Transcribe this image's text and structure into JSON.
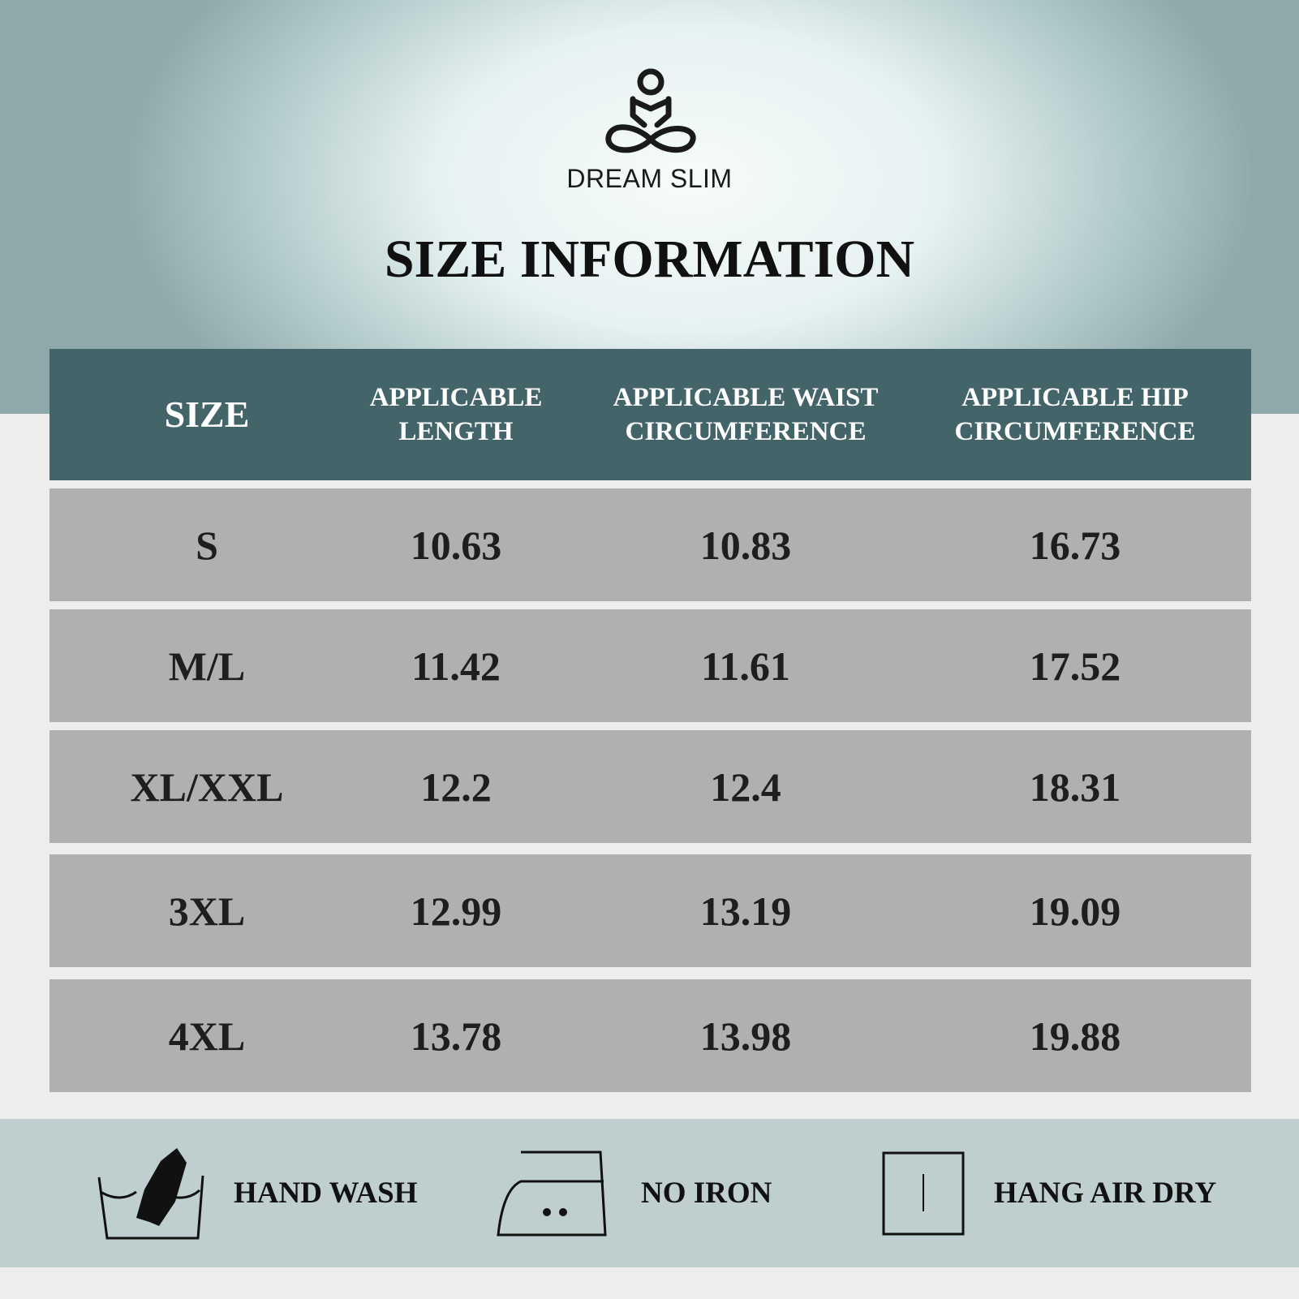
{
  "brand": {
    "name": "DREAM SLIM",
    "logo_icon": "meditation-figure-logo"
  },
  "title": "SIZE INFORMATION",
  "colors": {
    "header": "#436469",
    "row": "#b0b0b0",
    "care_band": "#bfcfcf"
  },
  "table": {
    "headers": [
      "SIZE",
      "APPLICABLE\nLENGTH",
      "APPLICABLE WAIST\nCIRCUMFERENCE",
      "APPLICABLE HIP\nCIRCUMFERENCE"
    ],
    "rows": [
      [
        "S",
        "10.63",
        "10.83",
        "16.73"
      ],
      [
        "M/L",
        "11.42",
        "11.61",
        "17.52"
      ],
      [
        "XL/XXL",
        "12.2",
        "12.4",
        "18.31"
      ],
      [
        "3XL",
        "12.99",
        "13.19",
        "19.09"
      ],
      [
        "4XL",
        "13.78",
        "13.98",
        "19.88"
      ]
    ]
  },
  "care": [
    {
      "icon": "hand-wash-icon",
      "label": "HAND WASH"
    },
    {
      "icon": "no-iron-icon",
      "label": "NO IRON"
    },
    {
      "icon": "hang-dry-icon",
      "label": "HANG AIR DRY"
    }
  ]
}
